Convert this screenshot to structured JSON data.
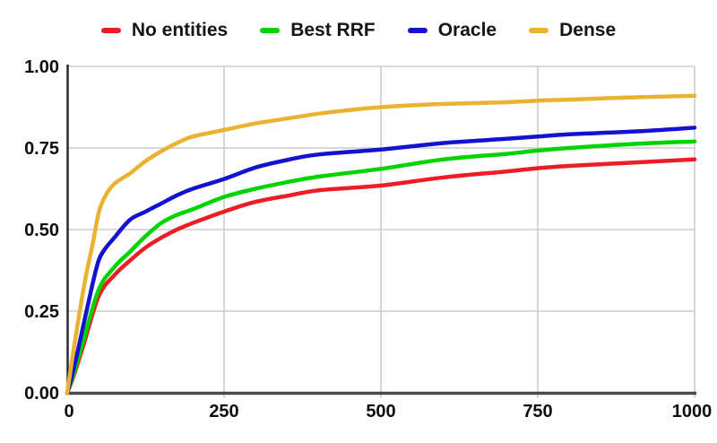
{
  "figure": {
    "background": "#ffffff",
    "grid_color": "#cccccc",
    "x_axis_color": "#4a4a4a",
    "y_axis_color": "#2a2a2a",
    "tick_label_color": "#0d0d0d"
  },
  "legend": {
    "items": [
      {
        "label": "No entities",
        "color": "#ee1c25"
      },
      {
        "label": "Best RRF",
        "color": "#00d400"
      },
      {
        "label": "Oracle",
        "color": "#1212d0"
      },
      {
        "label": "Dense",
        "color": "#eab231"
      }
    ]
  },
  "chart_data": {
    "type": "line",
    "title": "",
    "xlabel": "",
    "ylabel": "",
    "xlim": [
      0,
      1000
    ],
    "ylim": [
      0.0,
      1.0
    ],
    "grid": true,
    "legend_position": "top-center",
    "x_ticks": {
      "values": [
        0,
        250,
        500,
        750,
        1000
      ],
      "labels": [
        "0",
        "250",
        "500",
        "750",
        "1000"
      ]
    },
    "y_ticks": {
      "values": [
        0,
        0.25,
        0.5,
        0.75,
        1.0
      ],
      "labels": [
        "0.00",
        "0.25",
        "0.50",
        "0.75",
        "1.00"
      ]
    },
    "series": [
      {
        "name": "No entities",
        "color": "#ee1c25",
        "points": [
          [
            0,
            0
          ],
          [
            10,
            0.05
          ],
          [
            25,
            0.14
          ],
          [
            50,
            0.295
          ],
          [
            75,
            0.36
          ],
          [
            100,
            0.405
          ],
          [
            125,
            0.445
          ],
          [
            150,
            0.475
          ],
          [
            175,
            0.5
          ],
          [
            200,
            0.52
          ],
          [
            250,
            0.555
          ],
          [
            300,
            0.585
          ],
          [
            350,
            0.603
          ],
          [
            400,
            0.62
          ],
          [
            500,
            0.635
          ],
          [
            600,
            0.66
          ],
          [
            700,
            0.678
          ],
          [
            750,
            0.688
          ],
          [
            800,
            0.695
          ],
          [
            900,
            0.705
          ],
          [
            1000,
            0.715
          ]
        ]
      },
      {
        "name": "Best RRF",
        "color": "#00d400",
        "points": [
          [
            0,
            0
          ],
          [
            10,
            0.055
          ],
          [
            25,
            0.155
          ],
          [
            50,
            0.315
          ],
          [
            75,
            0.385
          ],
          [
            100,
            0.432
          ],
          [
            125,
            0.48
          ],
          [
            150,
            0.52
          ],
          [
            175,
            0.545
          ],
          [
            200,
            0.562
          ],
          [
            250,
            0.6
          ],
          [
            300,
            0.625
          ],
          [
            350,
            0.645
          ],
          [
            400,
            0.662
          ],
          [
            500,
            0.686
          ],
          [
            600,
            0.715
          ],
          [
            700,
            0.732
          ],
          [
            750,
            0.742
          ],
          [
            800,
            0.75
          ],
          [
            900,
            0.762
          ],
          [
            1000,
            0.77
          ]
        ]
      },
      {
        "name": "Oracle",
        "color": "#1212d0",
        "points": [
          [
            0,
            0
          ],
          [
            10,
            0.07
          ],
          [
            25,
            0.2
          ],
          [
            40,
            0.33
          ],
          [
            50,
            0.405
          ],
          [
            60,
            0.44
          ],
          [
            75,
            0.475
          ],
          [
            100,
            0.53
          ],
          [
            125,
            0.555
          ],
          [
            150,
            0.58
          ],
          [
            175,
            0.605
          ],
          [
            200,
            0.625
          ],
          [
            250,
            0.655
          ],
          [
            300,
            0.69
          ],
          [
            350,
            0.713
          ],
          [
            400,
            0.73
          ],
          [
            500,
            0.745
          ],
          [
            600,
            0.765
          ],
          [
            700,
            0.778
          ],
          [
            750,
            0.785
          ],
          [
            800,
            0.792
          ],
          [
            900,
            0.8
          ],
          [
            1000,
            0.812
          ]
        ]
      },
      {
        "name": "Dense",
        "color": "#eab231",
        "points": [
          [
            0,
            0
          ],
          [
            10,
            0.13
          ],
          [
            20,
            0.25
          ],
          [
            30,
            0.36
          ],
          [
            40,
            0.45
          ],
          [
            50,
            0.55
          ],
          [
            60,
            0.6
          ],
          [
            75,
            0.64
          ],
          [
            100,
            0.672
          ],
          [
            125,
            0.71
          ],
          [
            150,
            0.74
          ],
          [
            175,
            0.765
          ],
          [
            200,
            0.785
          ],
          [
            250,
            0.805
          ],
          [
            300,
            0.825
          ],
          [
            350,
            0.84
          ],
          [
            400,
            0.855
          ],
          [
            450,
            0.866
          ],
          [
            500,
            0.875
          ],
          [
            600,
            0.885
          ],
          [
            700,
            0.89
          ],
          [
            750,
            0.895
          ],
          [
            800,
            0.898
          ],
          [
            900,
            0.905
          ],
          [
            1000,
            0.91
          ]
        ]
      }
    ]
  }
}
